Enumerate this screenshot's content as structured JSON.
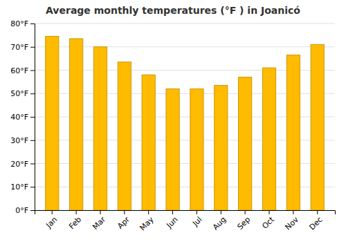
{
  "chart_data": {
    "type": "bar",
    "title": "Average monthly temperatures (°F ) in Joanicó",
    "categories": [
      "Jan",
      "Feb",
      "Mar",
      "Apr",
      "May",
      "Jun",
      "Jul",
      "Aug",
      "Sep",
      "Oct",
      "Nov",
      "Dec"
    ],
    "values": [
      74.5,
      73.5,
      70.0,
      63.5,
      58.0,
      52.0,
      52.0,
      53.5,
      57.0,
      61.0,
      66.5,
      71.0
    ],
    "color": "#FFBB00",
    "ylim": [
      0,
      80
    ],
    "yticks": [
      {
        "value": 0,
        "label": "0°F"
      },
      {
        "value": 10,
        "label": "10°F"
      },
      {
        "value": 20,
        "label": "20°F"
      },
      {
        "value": 30,
        "label": "30°F"
      },
      {
        "value": 40,
        "label": "40°F"
      },
      {
        "value": 50,
        "label": "50°F"
      },
      {
        "value": 60,
        "label": "60°F"
      },
      {
        "value": 70,
        "label": "70°F"
      },
      {
        "value": 80,
        "label": "80°F"
      }
    ],
    "grid": true
  }
}
